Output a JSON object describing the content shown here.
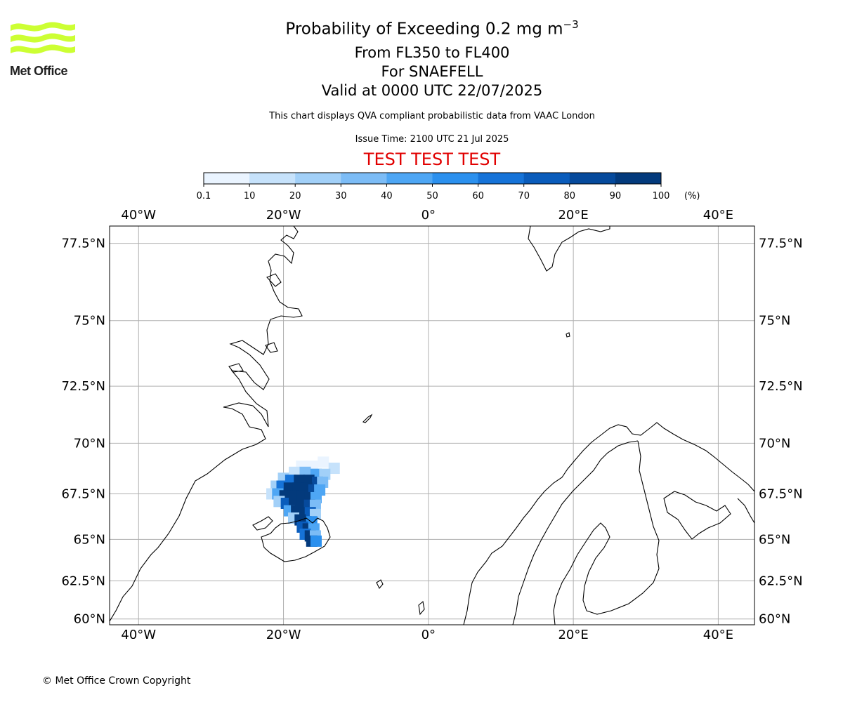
{
  "logo": {
    "text": "Met Office",
    "color": "#ccff33"
  },
  "header": {
    "title_prefix": "Probability of Exceeding 0.2 mg m",
    "title_sup": "−3",
    "levels": "From FL350 to FL400",
    "volcano": "For SNAEFELL",
    "valid": "Valid at 0000 UTC 22/07/2025",
    "note": "This chart displays QVA compliant probabilistic data from VAAC London",
    "issue": "Issue Time: 2100 UTC 21 Jul 2025",
    "test_banner": "TEST TEST TEST",
    "test_color": "#e10000"
  },
  "colorbar": {
    "ticks": [
      "0.1",
      "10",
      "20",
      "30",
      "40",
      "50",
      "60",
      "70",
      "80",
      "90",
      "100"
    ],
    "unit": "(%)",
    "colors": [
      "#eaf4ff",
      "#c6e2fb",
      "#a2d0f8",
      "#7cbcf6",
      "#4ea6f4",
      "#2b90ee",
      "#1673d8",
      "#0a5cbb",
      "#064a9c",
      "#033a7c",
      "#002b5c"
    ]
  },
  "map": {
    "lon_ticks": [
      "40°W",
      "20°W",
      "0°",
      "20°E",
      "40°E"
    ],
    "lat_ticks": [
      "77.5°N",
      "75°N",
      "72.5°N",
      "70°N",
      "67.5°N",
      "65°N",
      "62.5°N",
      "60°N"
    ],
    "lon_values": [
      -40,
      -20,
      0,
      20,
      40
    ],
    "lat_values": [
      77.5,
      75,
      72.5,
      70,
      67.5,
      65,
      62.5,
      60
    ],
    "gridline_color": "#b0b0b0"
  },
  "chart_data": {
    "type": "heatmap",
    "title": "Probability of Exceeding 0.2 mg m−3",
    "units": "%",
    "grid": true,
    "x_range": [
      -44,
      45
    ],
    "plume_cells": [
      {
        "lon": -17.5,
        "lat": 68.9,
        "p": 5
      },
      {
        "lon": -16.0,
        "lat": 68.9,
        "p": 5
      },
      {
        "lon": -14.5,
        "lat": 69.1,
        "p": 5
      },
      {
        "lon": -13.0,
        "lat": 68.8,
        "p": 15
      },
      {
        "lon": -18.5,
        "lat": 68.6,
        "p": 15
      },
      {
        "lon": -17.0,
        "lat": 68.6,
        "p": 30
      },
      {
        "lon": -15.5,
        "lat": 68.5,
        "p": 40
      },
      {
        "lon": -14.3,
        "lat": 68.5,
        "p": 25
      },
      {
        "lon": -20.0,
        "lat": 68.3,
        "p": 20
      },
      {
        "lon": -19.0,
        "lat": 68.2,
        "p": 60
      },
      {
        "lon": -17.8,
        "lat": 68.2,
        "p": 90
      },
      {
        "lon": -16.5,
        "lat": 68.2,
        "p": 95
      },
      {
        "lon": -15.3,
        "lat": 68.1,
        "p": 80
      },
      {
        "lon": -14.6,
        "lat": 68.1,
        "p": 30
      },
      {
        "lon": -21.0,
        "lat": 67.9,
        "p": 20
      },
      {
        "lon": -20.2,
        "lat": 67.9,
        "p": 60
      },
      {
        "lon": -19.2,
        "lat": 67.8,
        "p": 95
      },
      {
        "lon": -18.0,
        "lat": 67.8,
        "p": 95
      },
      {
        "lon": -16.8,
        "lat": 67.8,
        "p": 95
      },
      {
        "lon": -15.8,
        "lat": 67.7,
        "p": 85
      },
      {
        "lon": -15.0,
        "lat": 67.7,
        "p": 40
      },
      {
        "lon": -21.6,
        "lat": 67.5,
        "p": 10
      },
      {
        "lon": -20.8,
        "lat": 67.5,
        "p": 45
      },
      {
        "lon": -19.8,
        "lat": 67.4,
        "p": 95
      },
      {
        "lon": -18.6,
        "lat": 67.4,
        "p": 95
      },
      {
        "lon": -17.4,
        "lat": 67.4,
        "p": 95
      },
      {
        "lon": -16.3,
        "lat": 67.3,
        "p": 90
      },
      {
        "lon": -15.5,
        "lat": 67.3,
        "p": 45
      },
      {
        "lon": -20.6,
        "lat": 67.1,
        "p": 25
      },
      {
        "lon": -19.6,
        "lat": 67.0,
        "p": 75
      },
      {
        "lon": -18.5,
        "lat": 67.0,
        "p": 95
      },
      {
        "lon": -17.4,
        "lat": 67.0,
        "p": 95
      },
      {
        "lon": -16.4,
        "lat": 66.9,
        "p": 85
      },
      {
        "lon": -15.6,
        "lat": 66.9,
        "p": 35
      },
      {
        "lon": -19.2,
        "lat": 66.6,
        "p": 40
      },
      {
        "lon": -18.2,
        "lat": 66.6,
        "p": 95
      },
      {
        "lon": -17.2,
        "lat": 66.5,
        "p": 95
      },
      {
        "lon": -16.3,
        "lat": 66.5,
        "p": 70
      },
      {
        "lon": -15.6,
        "lat": 66.4,
        "p": 20
      },
      {
        "lon": -18.6,
        "lat": 66.2,
        "p": 25
      },
      {
        "lon": -17.7,
        "lat": 66.1,
        "p": 90
      },
      {
        "lon": -16.9,
        "lat": 66.0,
        "p": 95
      },
      {
        "lon": -16.1,
        "lat": 66.0,
        "p": 55
      },
      {
        "lon": -17.4,
        "lat": 65.7,
        "p": 70
      },
      {
        "lon": -16.6,
        "lat": 65.6,
        "p": 95
      },
      {
        "lon": -15.8,
        "lat": 65.6,
        "p": 45
      },
      {
        "lon": -17.0,
        "lat": 65.3,
        "p": 60
      },
      {
        "lon": -16.3,
        "lat": 65.2,
        "p": 95
      },
      {
        "lon": -15.6,
        "lat": 65.2,
        "p": 30
      },
      {
        "lon": -16.1,
        "lat": 64.9,
        "p": 95
      },
      {
        "lon": -15.5,
        "lat": 64.9,
        "p": 50
      }
    ]
  },
  "footer": {
    "copyright": "© Met Office Crown Copyright"
  }
}
